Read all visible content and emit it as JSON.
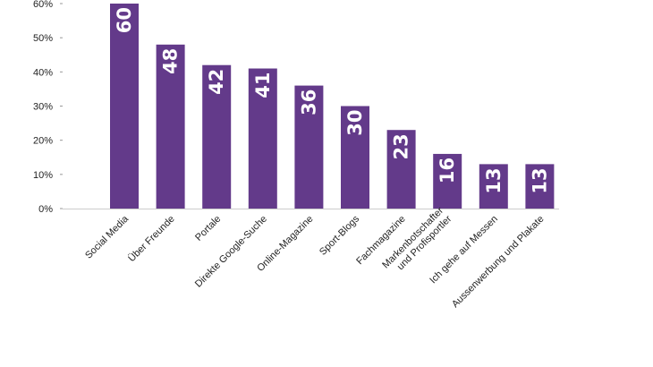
{
  "chart_data": {
    "type": "bar",
    "categories": [
      "Social Media",
      "Über Freunde",
      "Portale",
      "Direkte Google-Suche",
      "Online-Magazine",
      "Sport-Blogs",
      "Fachmagazine",
      "Markenbotschafter\nund Profisportler",
      "Ich gehe auf Messen",
      "Aussenwerbung und Plakate"
    ],
    "values": [
      60,
      48,
      42,
      41,
      36,
      30,
      23,
      16,
      13,
      13
    ],
    "value_labels": [
      "60",
      "48",
      "42",
      "41",
      "36",
      "30",
      "23",
      "16",
      "13",
      "13"
    ],
    "y_ticks": [
      "0%",
      "10%",
      "20%",
      "30%",
      "40%",
      "50%",
      "60%"
    ],
    "y_tick_values": [
      0,
      10,
      20,
      30,
      40,
      50,
      60
    ],
    "ylim": [
      0,
      60
    ],
    "grid": false,
    "bar_color": "#633a8a",
    "title": "",
    "xlabel": "",
    "ylabel": ""
  }
}
